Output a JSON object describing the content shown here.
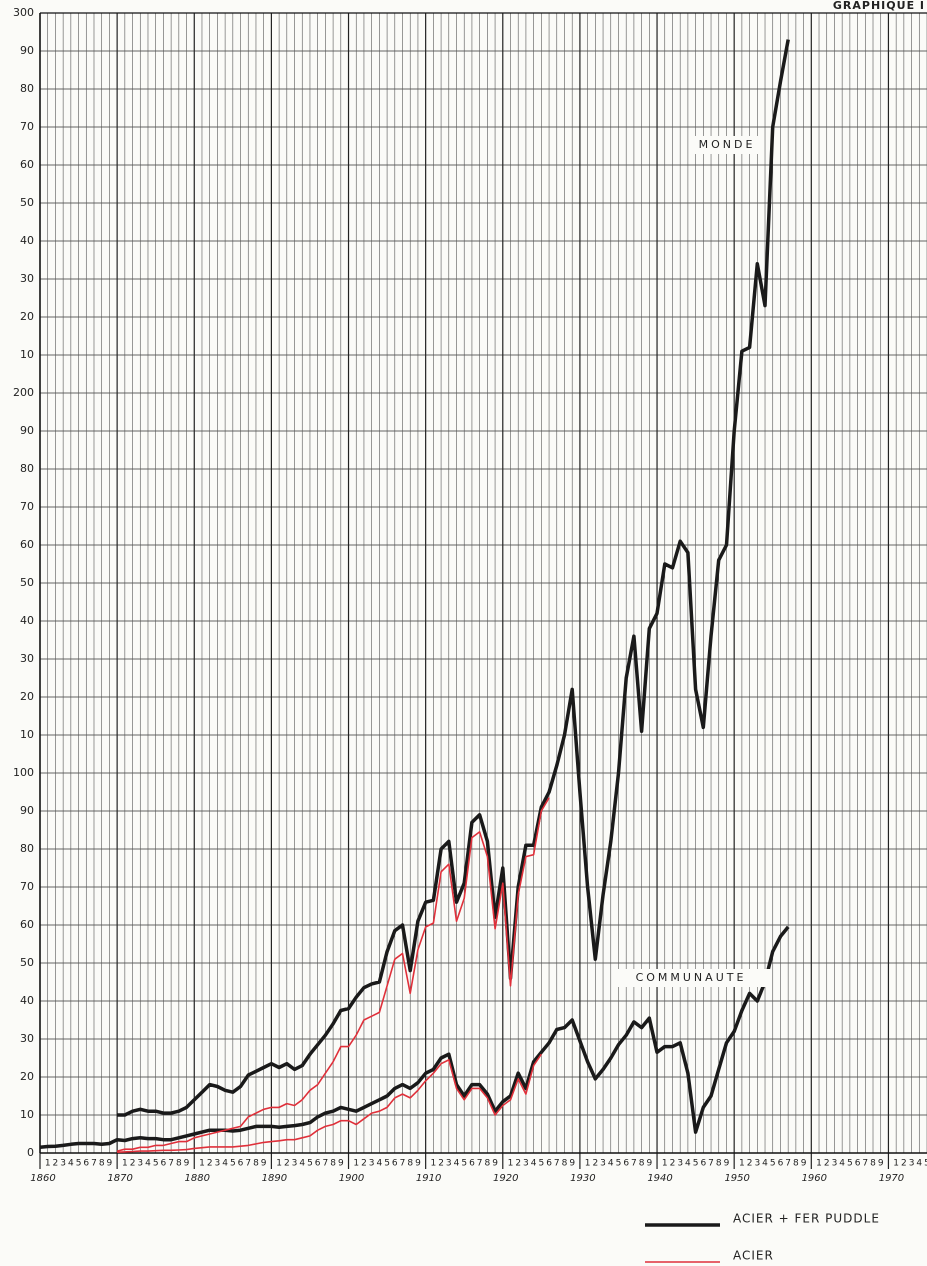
{
  "chart_data": {
    "type": "line",
    "title": "GRAPHIQUE I",
    "annotations": [
      "MONDE",
      "COMMUNAUTE"
    ],
    "x": [
      1860,
      1861,
      1862,
      1863,
      1864,
      1865,
      1866,
      1867,
      1868,
      1869,
      1870,
      1871,
      1872,
      1873,
      1874,
      1875,
      1876,
      1877,
      1878,
      1879,
      1880,
      1881,
      1882,
      1883,
      1884,
      1885,
      1886,
      1887,
      1888,
      1889,
      1890,
      1891,
      1892,
      1893,
      1894,
      1895,
      1896,
      1897,
      1898,
      1899,
      1900,
      1901,
      1902,
      1903,
      1904,
      1905,
      1906,
      1907,
      1908,
      1909,
      1910,
      1911,
      1912,
      1913,
      1914,
      1915,
      1916,
      1917,
      1918,
      1919,
      1920,
      1921,
      1922,
      1923,
      1924,
      1925,
      1926,
      1927,
      1928,
      1929,
      1930,
      1931,
      1932,
      1933,
      1934,
      1935,
      1936,
      1937,
      1938,
      1939,
      1940,
      1941,
      1942,
      1943,
      1944,
      1945,
      1946,
      1947,
      1948,
      1949,
      1950,
      1951,
      1952,
      1953,
      1954,
      1955,
      1956,
      1957
    ],
    "series": [
      {
        "name": "ACIER + FER PUDDLE",
        "color": "#1a1a1a",
        "width": 3.5,
        "values": [
          null,
          null,
          null,
          null,
          null,
          null,
          null,
          null,
          null,
          null,
          10,
          10,
          11,
          11.5,
          11,
          11,
          10.5,
          10.5,
          11,
          12,
          14,
          16,
          18,
          17.5,
          16.5,
          16,
          17.5,
          20.5,
          21.5,
          22.5,
          23.5,
          22.5,
          23.5,
          22,
          23,
          26,
          28.5,
          31,
          34,
          37.5,
          38,
          41,
          43.5,
          44.5,
          45,
          53,
          58.5,
          60,
          48,
          61,
          66,
          66.5,
          80,
          82,
          66,
          71,
          87,
          89,
          82,
          62,
          75,
          46,
          70,
          81,
          81,
          91,
          95,
          102,
          110,
          122,
          95,
          70,
          51,
          68,
          82,
          100,
          125,
          136,
          111,
          138,
          142,
          155,
          154,
          161,
          158,
          122,
          112,
          136,
          156,
          160,
          190,
          211,
          212,
          234,
          223,
          270,
          282,
          293
        ]
      },
      {
        "name": "ACIER",
        "color": "#e0303a",
        "width": 1.6,
        "values": [
          null,
          null,
          null,
          null,
          null,
          null,
          null,
          null,
          null,
          null,
          0.5,
          1,
          1,
          1.5,
          1.5,
          2,
          2,
          2.5,
          3,
          3,
          4,
          4.5,
          5,
          5.5,
          6,
          6.5,
          7,
          9.5,
          10.5,
          11.5,
          12,
          12,
          13,
          12.5,
          14,
          16.5,
          18,
          21,
          24,
          28,
          28,
          31,
          35,
          36,
          37,
          44,
          51,
          52.5,
          42,
          53.5,
          59.5,
          60.5,
          74,
          76,
          61,
          67,
          83,
          84.5,
          78,
          59,
          71,
          44,
          68,
          78,
          78.5,
          90,
          93.5,
          null,
          null,
          null,
          null,
          null,
          null,
          null,
          null,
          null,
          null,
          null,
          null,
          null,
          null,
          null,
          null,
          null,
          null,
          null,
          null,
          null,
          null,
          null,
          null,
          null,
          null,
          null,
          null,
          null,
          null,
          null
        ]
      },
      {
        "name": "ACIER + FER PUDDLE",
        "color": "#1a1a1a",
        "width": 3.5,
        "values": [
          1.5,
          1.7,
          1.8,
          2,
          2.3,
          2.5,
          2.5,
          2.5,
          2.3,
          2.5,
          3.5,
          3.3,
          3.8,
          4,
          3.8,
          3.8,
          3.5,
          3.5,
          4,
          4.5,
          5,
          5.5,
          6,
          6,
          6,
          5.8,
          6,
          6.5,
          7,
          7,
          7,
          6.8,
          7,
          7.2,
          7.5,
          8,
          9.5,
          10.5,
          11,
          12,
          11.5,
          11,
          12,
          13,
          14,
          15,
          17,
          18,
          17,
          18.5,
          21,
          22,
          25,
          26,
          18,
          15,
          18,
          18,
          15.5,
          11,
          13.5,
          15,
          21,
          17,
          24,
          26.5,
          29,
          32.5,
          33,
          35,
          29.5,
          24,
          19.5,
          22,
          25,
          28.5,
          31,
          34.5,
          33,
          35.5,
          26.5,
          28,
          28,
          29,
          21,
          5.5,
          12,
          15,
          22,
          29,
          32,
          37.5,
          42,
          40,
          45,
          53,
          57,
          59.5
        ]
      },
      {
        "name": "ACIER",
        "color": "#e0303a",
        "width": 1.6,
        "values": [
          null,
          null,
          null,
          null,
          null,
          null,
          null,
          null,
          null,
          null,
          0.2,
          0.3,
          0.4,
          0.5,
          0.5,
          0.6,
          0.7,
          0.7,
          0.8,
          0.9,
          1.2,
          1.4,
          1.6,
          1.6,
          1.6,
          1.6,
          1.8,
          2,
          2.4,
          2.8,
          3,
          3.2,
          3.5,
          3.5,
          4,
          4.5,
          6,
          7,
          7.5,
          8.5,
          8.5,
          7.5,
          9,
          10.5,
          11,
          12,
          14.5,
          15.5,
          14.5,
          16.5,
          19,
          21,
          23.5,
          24.5,
          17,
          14,
          17,
          17,
          14.5,
          10,
          12.5,
          14,
          19.5,
          15.5,
          23,
          26,
          null,
          null,
          null,
          null,
          null,
          null,
          null,
          null,
          null,
          null,
          null,
          null,
          null,
          null,
          null,
          null,
          null,
          null,
          null,
          null,
          null,
          null,
          null,
          null,
          null,
          null,
          null,
          null,
          null,
          null,
          null,
          null
        ]
      }
    ],
    "xlim": [
      1860,
      1975
    ],
    "xticks": [
      1860,
      1870,
      1880,
      1890,
      1900,
      1910,
      1920,
      1930,
      1940,
      1950,
      1960,
      1970
    ],
    "xminor_ticks": [
      {
        "value": 1861,
        "label": "1"
      },
      {
        "value": 1862,
        "label": "2"
      },
      {
        "value": 1863,
        "label": "3"
      },
      {
        "value": 1864,
        "label": "4"
      },
      {
        "value": 1865,
        "label": "5"
      },
      {
        "value": 1866,
        "label": "6"
      },
      {
        "value": 1867,
        "label": "7"
      },
      {
        "value": 1868,
        "label": "8"
      },
      {
        "value": 1869,
        "label": "9"
      },
      {
        "value": 1871,
        "label": "1"
      },
      {
        "value": 1872,
        "label": "2"
      },
      {
        "value": 1873,
        "label": "3"
      },
      {
        "value": 1874,
        "label": "4"
      },
      {
        "value": 1875,
        "label": "5"
      },
      {
        "value": 1876,
        "label": "6"
      },
      {
        "value": 1877,
        "label": "7"
      },
      {
        "value": 1878,
        "label": "8"
      },
      {
        "value": 1879,
        "label": "9"
      },
      {
        "value": 1881,
        "label": "1"
      },
      {
        "value": 1882,
        "label": "2"
      },
      {
        "value": 1883,
        "label": "3"
      },
      {
        "value": 1884,
        "label": "4"
      },
      {
        "value": 1885,
        "label": "5"
      },
      {
        "value": 1886,
        "label": "6"
      },
      {
        "value": 1887,
        "label": "7"
      },
      {
        "value": 1888,
        "label": "8"
      },
      {
        "value": 1889,
        "label": "9"
      },
      {
        "value": 1891,
        "label": "1"
      },
      {
        "value": 1892,
        "label": "2"
      },
      {
        "value": 1893,
        "label": "3"
      },
      {
        "value": 1894,
        "label": "4"
      },
      {
        "value": 1895,
        "label": "5"
      },
      {
        "value": 1896,
        "label": "6"
      },
      {
        "value": 1897,
        "label": "7"
      },
      {
        "value": 1898,
        "label": "8"
      },
      {
        "value": 1899,
        "label": "9"
      },
      {
        "value": 1901,
        "label": "1"
      },
      {
        "value": 1902,
        "label": "2"
      },
      {
        "value": 1903,
        "label": "3"
      },
      {
        "value": 1904,
        "label": "4"
      },
      {
        "value": 1905,
        "label": "5"
      },
      {
        "value": 1906,
        "label": "6"
      },
      {
        "value": 1907,
        "label": "7"
      },
      {
        "value": 1908,
        "label": "8"
      },
      {
        "value": 1909,
        "label": "9"
      },
      {
        "value": 1911,
        "label": "1"
      },
      {
        "value": 1912,
        "label": "2"
      },
      {
        "value": 1913,
        "label": "3"
      },
      {
        "value": 1914,
        "label": "4"
      },
      {
        "value": 1915,
        "label": "5"
      },
      {
        "value": 1916,
        "label": "6"
      },
      {
        "value": 1917,
        "label": "7"
      },
      {
        "value": 1918,
        "label": "8"
      },
      {
        "value": 1919,
        "label": "9"
      },
      {
        "value": 1921,
        "label": "1"
      },
      {
        "value": 1922,
        "label": "2"
      },
      {
        "value": 1923,
        "label": "3"
      },
      {
        "value": 1924,
        "label": "4"
      },
      {
        "value": 1925,
        "label": "5"
      },
      {
        "value": 1926,
        "label": "6"
      },
      {
        "value": 1927,
        "label": "7"
      },
      {
        "value": 1928,
        "label": "8"
      },
      {
        "value": 1929,
        "label": "9"
      },
      {
        "value": 1931,
        "label": "1"
      },
      {
        "value": 1932,
        "label": "2"
      },
      {
        "value": 1933,
        "label": "3"
      },
      {
        "value": 1934,
        "label": "4"
      },
      {
        "value": 1935,
        "label": "5"
      },
      {
        "value": 1936,
        "label": "6"
      },
      {
        "value": 1937,
        "label": "7"
      },
      {
        "value": 1938,
        "label": "8"
      },
      {
        "value": 1939,
        "label": "9"
      },
      {
        "value": 1941,
        "label": "1"
      },
      {
        "value": 1942,
        "label": "2"
      },
      {
        "value": 1943,
        "label": "3"
      },
      {
        "value": 1944,
        "label": "4"
      },
      {
        "value": 1945,
        "label": "5"
      },
      {
        "value": 1946,
        "label": "6"
      },
      {
        "value": 1947,
        "label": "7"
      },
      {
        "value": 1948,
        "label": "8"
      },
      {
        "value": 1949,
        "label": "9"
      },
      {
        "value": 1951,
        "label": "1"
      },
      {
        "value": 1952,
        "label": "2"
      },
      {
        "value": 1953,
        "label": "3"
      },
      {
        "value": 1954,
        "label": "4"
      },
      {
        "value": 1955,
        "label": "5"
      },
      {
        "value": 1956,
        "label": "6"
      },
      {
        "value": 1957,
        "label": "7"
      },
      {
        "value": 1958,
        "label": "8"
      },
      {
        "value": 1959,
        "label": "9"
      },
      {
        "value": 1961,
        "label": "1"
      },
      {
        "value": 1962,
        "label": "2"
      },
      {
        "value": 1963,
        "label": "3"
      },
      {
        "value": 1964,
        "label": "4"
      },
      {
        "value": 1965,
        "label": "5"
      },
      {
        "value": 1966,
        "label": "6"
      },
      {
        "value": 1967,
        "label": "7"
      },
      {
        "value": 1968,
        "label": "8"
      },
      {
        "value": 1969,
        "label": "9"
      },
      {
        "value": 1971,
        "label": "1"
      },
      {
        "value": 1972,
        "label": "2"
      },
      {
        "value": 1973,
        "label": "3"
      },
      {
        "value": 1974,
        "label": "4"
      },
      {
        "value": 1975,
        "label": "5"
      }
    ],
    "ylim": [
      0,
      300
    ],
    "yticks": [
      0,
      10,
      20,
      30,
      40,
      50,
      60,
      70,
      80,
      90,
      100,
      {
        "value": 110,
        "label": "10"
      },
      {
        "value": 120,
        "label": "20"
      },
      {
        "value": 130,
        "label": "30"
      },
      {
        "value": 140,
        "label": "40"
      },
      {
        "value": 150,
        "label": "50"
      },
      {
        "value": 160,
        "label": "60"
      },
      {
        "value": 170,
        "label": "70"
      },
      {
        "value": 180,
        "label": "80"
      },
      {
        "value": 190,
        "label": "90"
      },
      200,
      {
        "value": 210,
        "label": "10"
      },
      {
        "value": 220,
        "label": "20"
      },
      {
        "value": 230,
        "label": "30"
      },
      {
        "value": 240,
        "label": "40"
      },
      {
        "value": 250,
        "label": "50"
      },
      {
        "value": 260,
        "label": "60"
      },
      {
        "value": 270,
        "label": "70"
      },
      {
        "value": 280,
        "label": "80"
      },
      {
        "value": 290,
        "label": "90"
      },
      300
    ],
    "grid": true
  }
}
